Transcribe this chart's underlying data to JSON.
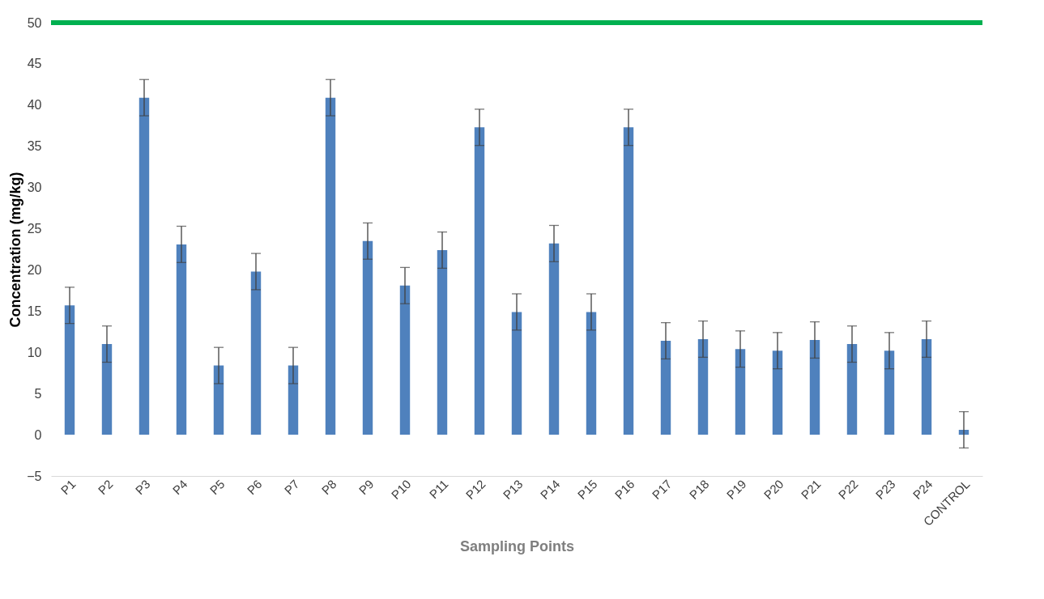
{
  "chart_data": {
    "type": "bar",
    "xlabel": "Sampling Points",
    "ylabel": "Concentration (mg/kg)",
    "categories": [
      "P1",
      "P2",
      "P3",
      "P4",
      "P5",
      "P6",
      "P7",
      "P8",
      "P9",
      "P10",
      "P11",
      "P12",
      "P13",
      "P14",
      "P15",
      "P16",
      "P17",
      "P18",
      "P19",
      "P20",
      "P21",
      "P22",
      "P23",
      "P24",
      "CONTROL"
    ],
    "values": [
      15.7,
      11.0,
      40.9,
      23.1,
      8.4,
      19.8,
      8.4,
      40.9,
      23.5,
      18.1,
      22.4,
      37.3,
      14.9,
      23.2,
      14.9,
      37.3,
      11.4,
      11.6,
      10.4,
      10.2,
      11.5,
      11.0,
      10.2,
      11.6,
      0.6
    ],
    "errors": [
      2.2,
      2.2,
      2.2,
      2.2,
      2.2,
      2.2,
      2.2,
      2.2,
      2.2,
      2.2,
      2.2,
      2.2,
      2.2,
      2.2,
      2.2,
      2.2,
      2.2,
      2.2,
      2.2,
      2.2,
      2.2,
      2.2,
      2.2,
      2.2,
      2.2
    ],
    "color": "#4f81bd",
    "ylim": [
      -5,
      50
    ],
    "yticks": [
      -5,
      0,
      5,
      10,
      15,
      20,
      25,
      30,
      35,
      40,
      45,
      50
    ],
    "ref_lines": [
      {
        "axis": "y",
        "value": 50,
        "color": "#00b050"
      }
    ],
    "grid": false
  }
}
